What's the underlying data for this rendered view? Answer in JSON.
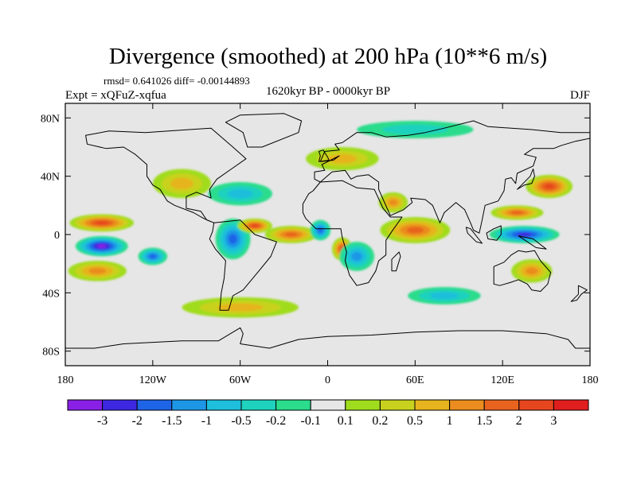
{
  "chart_data": {
    "type": "contour-map",
    "title": "Divergence (smoothed) at 200 hPa (10**6 m/s)",
    "stats": "rmsd= 0.641026 diff= -0.00144893",
    "experiment": "Expt = xQFuZ-xqfua",
    "period": "1620kyr BP - 0000kyr BP",
    "season": "DJF",
    "xlim": [
      -180,
      180
    ],
    "ylim": [
      -90,
      90
    ],
    "xtick_values": [
      -180,
      -120,
      -60,
      0,
      60,
      120,
      180
    ],
    "xtick_labels": [
      "180",
      "120W",
      "60W",
      "0",
      "60E",
      "120E",
      "180"
    ],
    "ytick_values": [
      80,
      40,
      0,
      -40,
      -80
    ],
    "ytick_labels": [
      "80N",
      "40N",
      "0",
      "40S",
      "80S"
    ],
    "levels": [
      "-3",
      "-2",
      "-1.5",
      "-1",
      "-0.5",
      "-0.2",
      "-0.1",
      "0.1",
      "0.2",
      "0.5",
      "1",
      "1.5",
      "2",
      "3"
    ],
    "level_values": [
      -3,
      -2,
      -1.5,
      -1,
      -0.5,
      -0.2,
      -0.1,
      0.1,
      0.2,
      0.5,
      1,
      1.5,
      2,
      3
    ],
    "bin_colors": [
      "#8a20e6",
      "#3c28e0",
      "#1e64e6",
      "#1e96e6",
      "#1ebedc",
      "#1ed2be",
      "#2bdc8c",
      "#e6e6e6",
      "#a0dc1e",
      "#c8d21e",
      "#e6b41e",
      "#ea8c1e",
      "#e8641e",
      "#e6461e",
      "#e11e1e"
    ],
    "features": [
      {
        "name": "tropical-pacific-minimum",
        "lon": -155,
        "lat": -8,
        "value": -3.2,
        "rx": 18,
        "ry": 7
      },
      {
        "name": "east-pacific-maximum",
        "lon": -155,
        "lat": 8,
        "value": 2.1,
        "rx": 22,
        "ry": 6
      },
      {
        "name": "central-pacific-minimum",
        "lon": -120,
        "lat": -15,
        "value": -1.8,
        "rx": 10,
        "ry": 6
      },
      {
        "name": "south-pacific-maximum",
        "lon": -158,
        "lat": -25,
        "value": 1.3,
        "rx": 20,
        "ry": 7
      },
      {
        "name": "amazon-minimum",
        "lon": -65,
        "lat": -3,
        "value": -1.7,
        "rx": 12,
        "ry": 14
      },
      {
        "name": "north-atlantic-maximum",
        "lon": -50,
        "lat": 6,
        "value": 2.0,
        "rx": 12,
        "ry": 5
      },
      {
        "name": "equatorial-atlantic-maximum",
        "lon": -25,
        "lat": 0,
        "value": 1.8,
        "rx": 18,
        "ry": 6
      },
      {
        "name": "west-africa-minimum",
        "lon": -5,
        "lat": 3,
        "value": -1.6,
        "rx": 7,
        "ry": 7
      },
      {
        "name": "gulf-of-guinea-maximum",
        "lon": 10,
        "lat": -10,
        "value": 2.6,
        "rx": 7,
        "ry": 8
      },
      {
        "name": "southern-africa-minimum",
        "lon": 20,
        "lat": -15,
        "value": -1.2,
        "rx": 12,
        "ry": 10
      },
      {
        "name": "indian-ocean-maximum",
        "lon": 60,
        "lat": 3,
        "value": 1.6,
        "rx": 24,
        "ry": 9
      },
      {
        "name": "arabia-maximum",
        "lon": 45,
        "lat": 22,
        "value": 1.2,
        "rx": 10,
        "ry": 7
      },
      {
        "name": "maritime-continent-minimum",
        "lon": 135,
        "lat": 0,
        "value": -2.8,
        "rx": 24,
        "ry": 6
      },
      {
        "name": "west-pacific-maximum",
        "lon": 130,
        "lat": 15,
        "value": 1.7,
        "rx": 18,
        "ry": 5
      },
      {
        "name": "north-pacific-maximum",
        "lon": 152,
        "lat": 33,
        "value": 2.3,
        "rx": 16,
        "ry": 8
      },
      {
        "name": "australia-maximum",
        "lon": 140,
        "lat": -25,
        "value": 1.3,
        "rx": 14,
        "ry": 8
      },
      {
        "name": "north-america-maximum",
        "lon": -100,
        "lat": 35,
        "value": 0.9,
        "rx": 20,
        "ry": 10
      },
      {
        "name": "north-atlantic-minimum",
        "lon": -60,
        "lat": 28,
        "value": -0.7,
        "rx": 22,
        "ry": 8
      },
      {
        "name": "europe-maximum",
        "lon": 10,
        "lat": 52,
        "value": 0.5,
        "rx": 25,
        "ry": 8
      },
      {
        "name": "arctic-minimum",
        "lon": 60,
        "lat": 72,
        "value": -0.4,
        "rx": 40,
        "ry": 6
      },
      {
        "name": "southern-ocean-maximum",
        "lon": -60,
        "lat": -50,
        "value": 0.6,
        "rx": 40,
        "ry": 7
      },
      {
        "name": "southern-indian-minimum",
        "lon": 80,
        "lat": -42,
        "value": -0.6,
        "rx": 25,
        "ry": 6
      }
    ]
  }
}
